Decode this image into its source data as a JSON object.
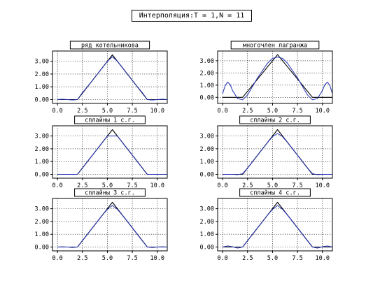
{
  "title": "Интерполяция:T = 1,N = 11",
  "colors": {
    "curve": "#1f2fb0",
    "reference": "#000000",
    "grid": "#000000",
    "frame": "#000000",
    "background": "#ffffff"
  },
  "chart_data": [
    {
      "type": "line",
      "title": "ряд котельникова",
      "xlim": [
        -0.5,
        11.0
      ],
      "ylim": [
        -0.3,
        3.8
      ],
      "xticks": [
        "0.0",
        "2.5",
        "5.0",
        "7.5",
        "10.0"
      ],
      "yticks": [
        "0.00",
        "1.00",
        "2.00",
        "3.00"
      ],
      "grid": true,
      "series": [
        {
          "role": "reference",
          "color": "#000000",
          "x": [
            0.0,
            1.0,
            2.0,
            5.5,
            9.0,
            10.0,
            11.0
          ],
          "y": [
            0,
            0,
            0,
            3.5,
            0,
            0,
            0
          ]
        },
        {
          "role": "interpolant",
          "color": "#1f2fb0",
          "x": [
            0.0,
            0.5,
            1.0,
            1.5,
            2.0,
            2.5,
            3.0,
            3.5,
            4.0,
            4.5,
            5.0,
            5.5,
            6.0,
            6.5,
            7.0,
            7.5,
            8.0,
            8.5,
            9.0,
            9.5,
            10.0,
            10.5,
            11.0
          ],
          "y": [
            0.0,
            0.03,
            0.0,
            -0.03,
            0.0,
            0.55,
            1.0,
            1.5,
            2.0,
            2.5,
            3.0,
            3.35,
            3.0,
            2.5,
            2.0,
            1.5,
            1.0,
            0.55,
            0.0,
            -0.03,
            0.0,
            0.03,
            0.0
          ]
        }
      ]
    },
    {
      "type": "line",
      "title": "многочлен лагранжа",
      "xlim": [
        -0.5,
        11.0
      ],
      "ylim": [
        -0.5,
        3.8
      ],
      "xticks": [
        "0.0",
        "2.5",
        "5.0",
        "7.5",
        "10.0"
      ],
      "yticks": [
        "0.00",
        "1.00",
        "2.00",
        "3.00"
      ],
      "grid": true,
      "series": [
        {
          "role": "reference",
          "color": "#000000",
          "x": [
            0.0,
            1.0,
            2.0,
            5.5,
            9.0,
            10.0,
            11.0
          ],
          "y": [
            0,
            0,
            0,
            3.5,
            0,
            0,
            0
          ]
        },
        {
          "role": "interpolant",
          "color": "#1f2fb0",
          "x": [
            0.0,
            0.25,
            0.5,
            0.75,
            1.0,
            1.5,
            2.0,
            2.5,
            3.0,
            3.5,
            4.0,
            4.5,
            5.0,
            5.5,
            6.0,
            6.5,
            7.0,
            7.5,
            8.0,
            8.5,
            9.0,
            9.5,
            10.0,
            10.25,
            10.5,
            10.75,
            11.0
          ],
          "y": [
            0.3,
            0.95,
            1.25,
            1.05,
            0.55,
            -0.1,
            -0.2,
            0.2,
            0.9,
            1.6,
            2.2,
            2.8,
            3.2,
            3.3,
            3.2,
            2.8,
            2.2,
            1.6,
            0.9,
            0.2,
            -0.2,
            -0.1,
            0.55,
            1.05,
            1.25,
            0.95,
            0.3
          ]
        }
      ]
    },
    {
      "type": "line",
      "title": "сплайны 1 с.г.",
      "xlim": [
        -0.5,
        11.0
      ],
      "ylim": [
        -0.3,
        3.8
      ],
      "xticks": [
        "0.0",
        "2.5",
        "5.0",
        "7.5",
        "10.0"
      ],
      "yticks": [
        "0.00",
        "1.00",
        "2.00",
        "3.00"
      ],
      "grid": true,
      "series": [
        {
          "role": "reference",
          "color": "#000000",
          "x": [
            0.0,
            1.0,
            2.0,
            5.5,
            9.0,
            10.0,
            11.0
          ],
          "y": [
            0,
            0,
            0,
            3.5,
            0,
            0,
            0
          ]
        },
        {
          "role": "interpolant",
          "color": "#1f2fb0",
          "x": [
            0.0,
            1.0,
            2.0,
            3.0,
            4.0,
            5.0,
            6.0,
            7.0,
            8.0,
            9.0,
            10.0,
            11.0
          ],
          "y": [
            0,
            0,
            0,
            1.0,
            2.0,
            3.0,
            3.0,
            2.0,
            1.0,
            0,
            0,
            0
          ]
        }
      ]
    },
    {
      "type": "line",
      "title": "сплайны 2 с.г.",
      "xlim": [
        -0.5,
        11.0
      ],
      "ylim": [
        -0.3,
        3.8
      ],
      "xticks": [
        "0.0",
        "2.5",
        "5.0",
        "7.5",
        "10.0"
      ],
      "yticks": [
        "0.00",
        "1.00",
        "2.00",
        "3.00"
      ],
      "grid": true,
      "series": [
        {
          "role": "reference",
          "color": "#000000",
          "x": [
            0.0,
            1.0,
            2.0,
            5.5,
            9.0,
            10.0,
            11.0
          ],
          "y": [
            0,
            0,
            0,
            3.5,
            0,
            0,
            0
          ]
        },
        {
          "role": "interpolant",
          "color": "#1f2fb0",
          "x": [
            0.0,
            1.0,
            1.5,
            2.0,
            2.5,
            3.0,
            3.5,
            4.0,
            4.5,
            5.0,
            5.5,
            6.0,
            6.5,
            7.0,
            7.5,
            8.0,
            8.5,
            9.0,
            9.5,
            10.0,
            11.0
          ],
          "y": [
            0,
            0,
            -0.02,
            0.05,
            0.5,
            1.0,
            1.5,
            2.0,
            2.5,
            2.95,
            3.2,
            2.95,
            2.5,
            2.0,
            1.5,
            1.0,
            0.5,
            0.05,
            -0.02,
            0,
            0
          ]
        }
      ]
    },
    {
      "type": "line",
      "title": "сплайны 3 с.г.",
      "xlim": [
        -0.5,
        11.0
      ],
      "ylim": [
        -0.3,
        3.8
      ],
      "xticks": [
        "0.0",
        "2.5",
        "5.0",
        "7.5",
        "10.0"
      ],
      "yticks": [
        "0.00",
        "1.00",
        "2.00",
        "3.00"
      ],
      "grid": true,
      "series": [
        {
          "role": "reference",
          "color": "#000000",
          "x": [
            0.0,
            1.0,
            2.0,
            5.5,
            9.0,
            10.0,
            11.0
          ],
          "y": [
            0,
            0,
            0,
            3.5,
            0,
            0,
            0
          ]
        },
        {
          "role": "interpolant",
          "color": "#1f2fb0",
          "x": [
            0.0,
            0.5,
            1.0,
            1.5,
            2.0,
            2.5,
            3.0,
            3.5,
            4.0,
            4.5,
            5.0,
            5.5,
            6.0,
            6.5,
            7.0,
            7.5,
            8.0,
            8.5,
            9.0,
            9.5,
            10.0,
            10.5,
            11.0
          ],
          "y": [
            0,
            0.02,
            0,
            -0.03,
            0.0,
            0.5,
            1.0,
            1.5,
            2.0,
            2.5,
            2.95,
            3.25,
            2.95,
            2.5,
            2.0,
            1.5,
            1.0,
            0.5,
            0.0,
            -0.03,
            0,
            0.02,
            0
          ]
        }
      ]
    },
    {
      "type": "line",
      "title": "сплайны 4 с.г.",
      "xlim": [
        -0.5,
        11.0
      ],
      "ylim": [
        -0.3,
        3.8
      ],
      "xticks": [
        "0.0",
        "2.5",
        "5.0",
        "7.5",
        "10.0"
      ],
      "yticks": [
        "0.00",
        "1.00",
        "2.00",
        "3.00"
      ],
      "grid": true,
      "series": [
        {
          "role": "reference",
          "color": "#000000",
          "x": [
            0.0,
            1.0,
            2.0,
            5.5,
            9.0,
            10.0,
            11.0
          ],
          "y": [
            0,
            0,
            0,
            3.5,
            0,
            0,
            0
          ]
        },
        {
          "role": "interpolant",
          "color": "#1f2fb0",
          "x": [
            0.0,
            0.5,
            1.0,
            1.5,
            2.0,
            2.5,
            3.0,
            3.5,
            4.0,
            4.5,
            5.0,
            5.5,
            6.0,
            6.5,
            7.0,
            7.5,
            8.0,
            8.5,
            9.0,
            9.5,
            10.0,
            10.5,
            11.0
          ],
          "y": [
            0,
            0.08,
            0.02,
            -0.08,
            0.0,
            0.5,
            1.0,
            1.5,
            2.0,
            2.5,
            2.95,
            3.25,
            2.95,
            2.5,
            2.0,
            1.5,
            1.0,
            0.5,
            0.0,
            -0.08,
            0.02,
            0.08,
            0
          ]
        }
      ]
    }
  ]
}
